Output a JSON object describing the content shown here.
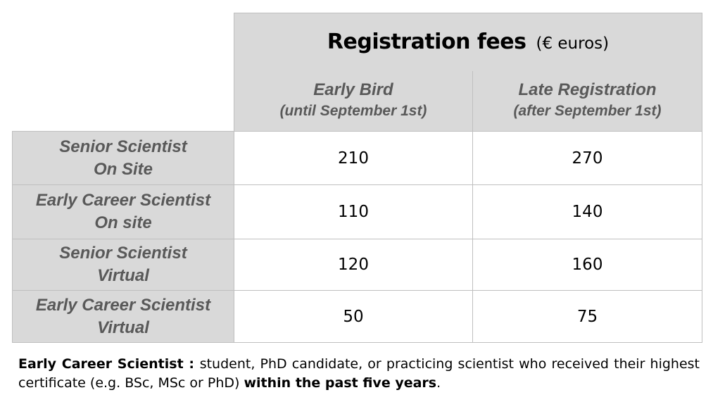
{
  "table": {
    "title": "Registration fees",
    "title_unit": "(€ euros)",
    "columns": [
      {
        "main": "Early Bird",
        "sub": "(until September 1st)"
      },
      {
        "main": "Late Registration",
        "sub": "(after September 1st)"
      }
    ],
    "rows": [
      {
        "label_line1": "Senior Scientist",
        "label_line2": "On Site",
        "early": "210",
        "late": "270"
      },
      {
        "label_line1": "Early Career Scientist",
        "label_line2": "On site",
        "early": "110",
        "late": "140"
      },
      {
        "label_line1": "Senior Scientist",
        "label_line2": "Virtual",
        "early": "120",
        "late": "160"
      },
      {
        "label_line1": "Early Career Scientist",
        "label_line2": "Virtual",
        "early": "50",
        "late": "75"
      }
    ]
  },
  "footnote": {
    "term": "Early Career Scientist",
    "separator": " : ",
    "text": "student, PhD candidate, or practicing scientist who received their highest certificate (e.g. BSc, MSc or PhD) ",
    "emphasis": "within the past five years",
    "end": "."
  }
}
